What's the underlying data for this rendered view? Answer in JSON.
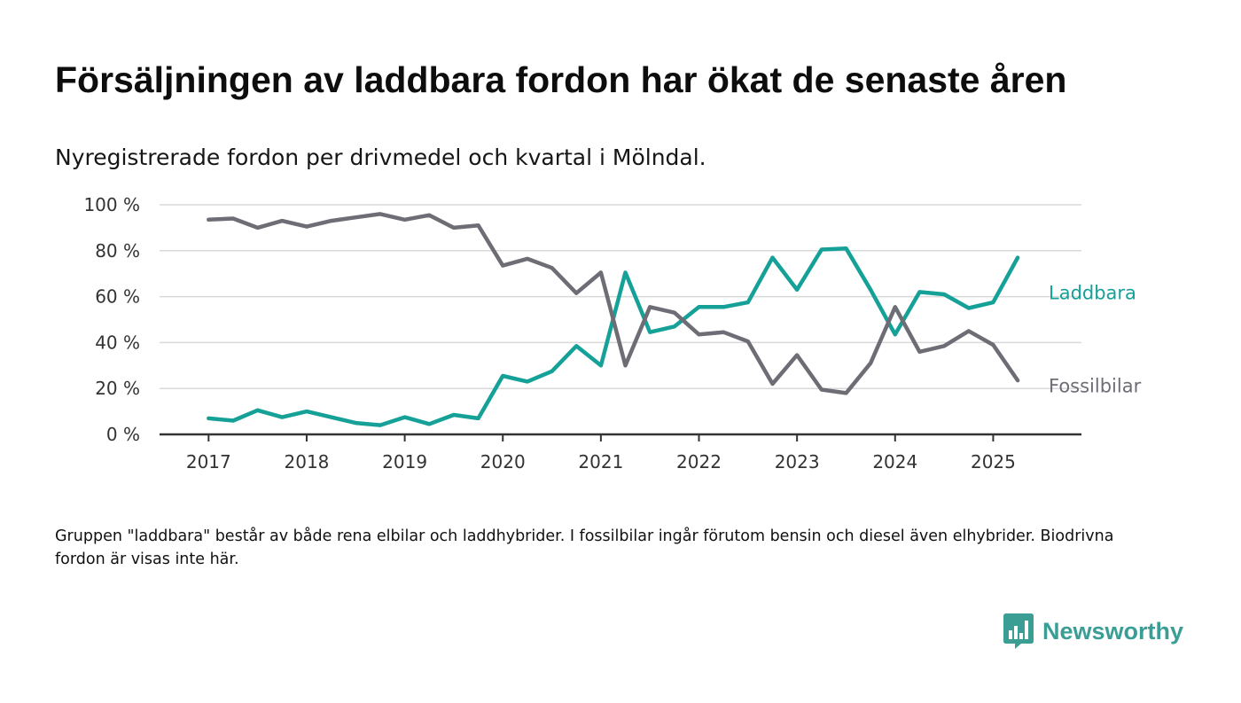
{
  "title": "Försäljningen av laddbara fordon har ökat de senaste åren",
  "subtitle": "Nyregistrerade fordon per drivmedel och kvartal i Mölndal.",
  "note": "Gruppen \"laddbara\" består av både rena elbilar och laddhybrider. I fossilbilar ingår förutom bensin och diesel även elhybrider. Biodrivna fordon är visas inte här.",
  "brand": {
    "name": "Newsworthy",
    "color": "#3a9e95",
    "icon": "chart-bubble-logo"
  },
  "chart_data": {
    "type": "line",
    "title": "Försäljningen av laddbara fordon har ökat de senaste åren",
    "subtitle": "Nyregistrerade fordon per drivmedel och kvartal i Mölndal.",
    "ylim": [
      0,
      100
    ],
    "y_ticks": [
      0,
      20,
      40,
      60,
      80,
      100
    ],
    "y_tick_labels": [
      "0 %",
      "20 %",
      "40 %",
      "60 %",
      "80 %",
      "100 %"
    ],
    "x_ticks": [
      2017,
      2018,
      2019,
      2020,
      2021,
      2022,
      2023,
      2024,
      2025
    ],
    "x_tick_labels": [
      "2017",
      "2018",
      "2019",
      "2020",
      "2021",
      "2022",
      "2023",
      "2024",
      "2025"
    ],
    "xlim": [
      2016.5,
      2025.9
    ],
    "grid": true,
    "legend": "direct labels at line ends",
    "x": [
      2017,
      2017.25,
      2017.5,
      2017.75,
      2018,
      2018.25,
      2018.5,
      2018.75,
      2019,
      2019.25,
      2019.5,
      2019.75,
      2020,
      2020.25,
      2020.5,
      2020.75,
      2021,
      2021.25,
      2021.5,
      2021.75,
      2022,
      2022.25,
      2022.5,
      2022.75,
      2023,
      2023.25,
      2023.5,
      2023.75,
      2024,
      2024.25,
      2024.5,
      2024.75,
      2025,
      2025.25
    ],
    "series": [
      {
        "name": "Laddbara",
        "color": "#15a197",
        "values": [
          7,
          6,
          10.5,
          7.5,
          10,
          7.5,
          5,
          4,
          7.5,
          4.5,
          8.5,
          7,
          25.5,
          23,
          27.5,
          38.5,
          30,
          70.5,
          44.5,
          47,
          55.5,
          55.5,
          57.5,
          77,
          63,
          80.5,
          81,
          63,
          43.5,
          62,
          61,
          55,
          57.5,
          77
        ]
      },
      {
        "name": "Fossilbilar",
        "color": "#6e6d75",
        "values": [
          93.5,
          94,
          90,
          93,
          90.5,
          93,
          94.5,
          96,
          93.5,
          95.5,
          90,
          91,
          73.5,
          76.5,
          72.5,
          61.5,
          70.5,
          30,
          55.5,
          53,
          43.5,
          44.5,
          40.5,
          22,
          34.5,
          19.5,
          18,
          31,
          55.5,
          36,
          38.5,
          45,
          39,
          23.5
        ]
      }
    ]
  }
}
